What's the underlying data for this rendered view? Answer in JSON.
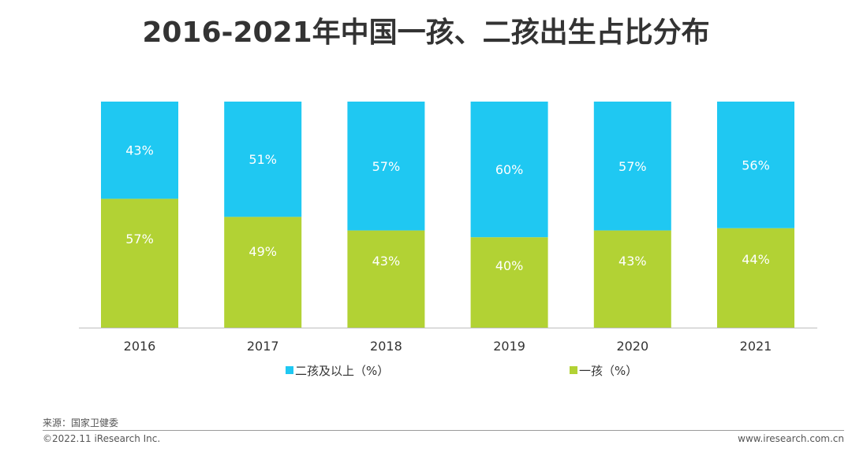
{
  "title": "2016-2021年中国一孩、二孩出生占比分布",
  "source": "来源：国家卫健委",
  "copyright": "©2022.11 iResearch Inc.",
  "website": "www.iresearch.com.cn",
  "colors": {
    "second_child": "#1fc8f2",
    "first_child": "#b2d234",
    "axis": "#bdbdbd",
    "label_inside": "#ffffff",
    "tick": "#333333"
  },
  "chart_data": {
    "type": "bar",
    "stacked": true,
    "categories": [
      "2016",
      "2017",
      "2018",
      "2019",
      "2020",
      "2021"
    ],
    "series": [
      {
        "name": "一孩（%）",
        "values": [
          57,
          49,
          43,
          40,
          43,
          44
        ]
      },
      {
        "name": "二孩及以上（%）",
        "values": [
          43,
          51,
          57,
          60,
          57,
          56
        ]
      }
    ],
    "legend_order": [
      "二孩及以上（%）",
      "一孩（%）"
    ],
    "value_suffix": "%",
    "ylim": [
      0,
      100
    ],
    "grid": false,
    "legend_position": "bottom"
  }
}
